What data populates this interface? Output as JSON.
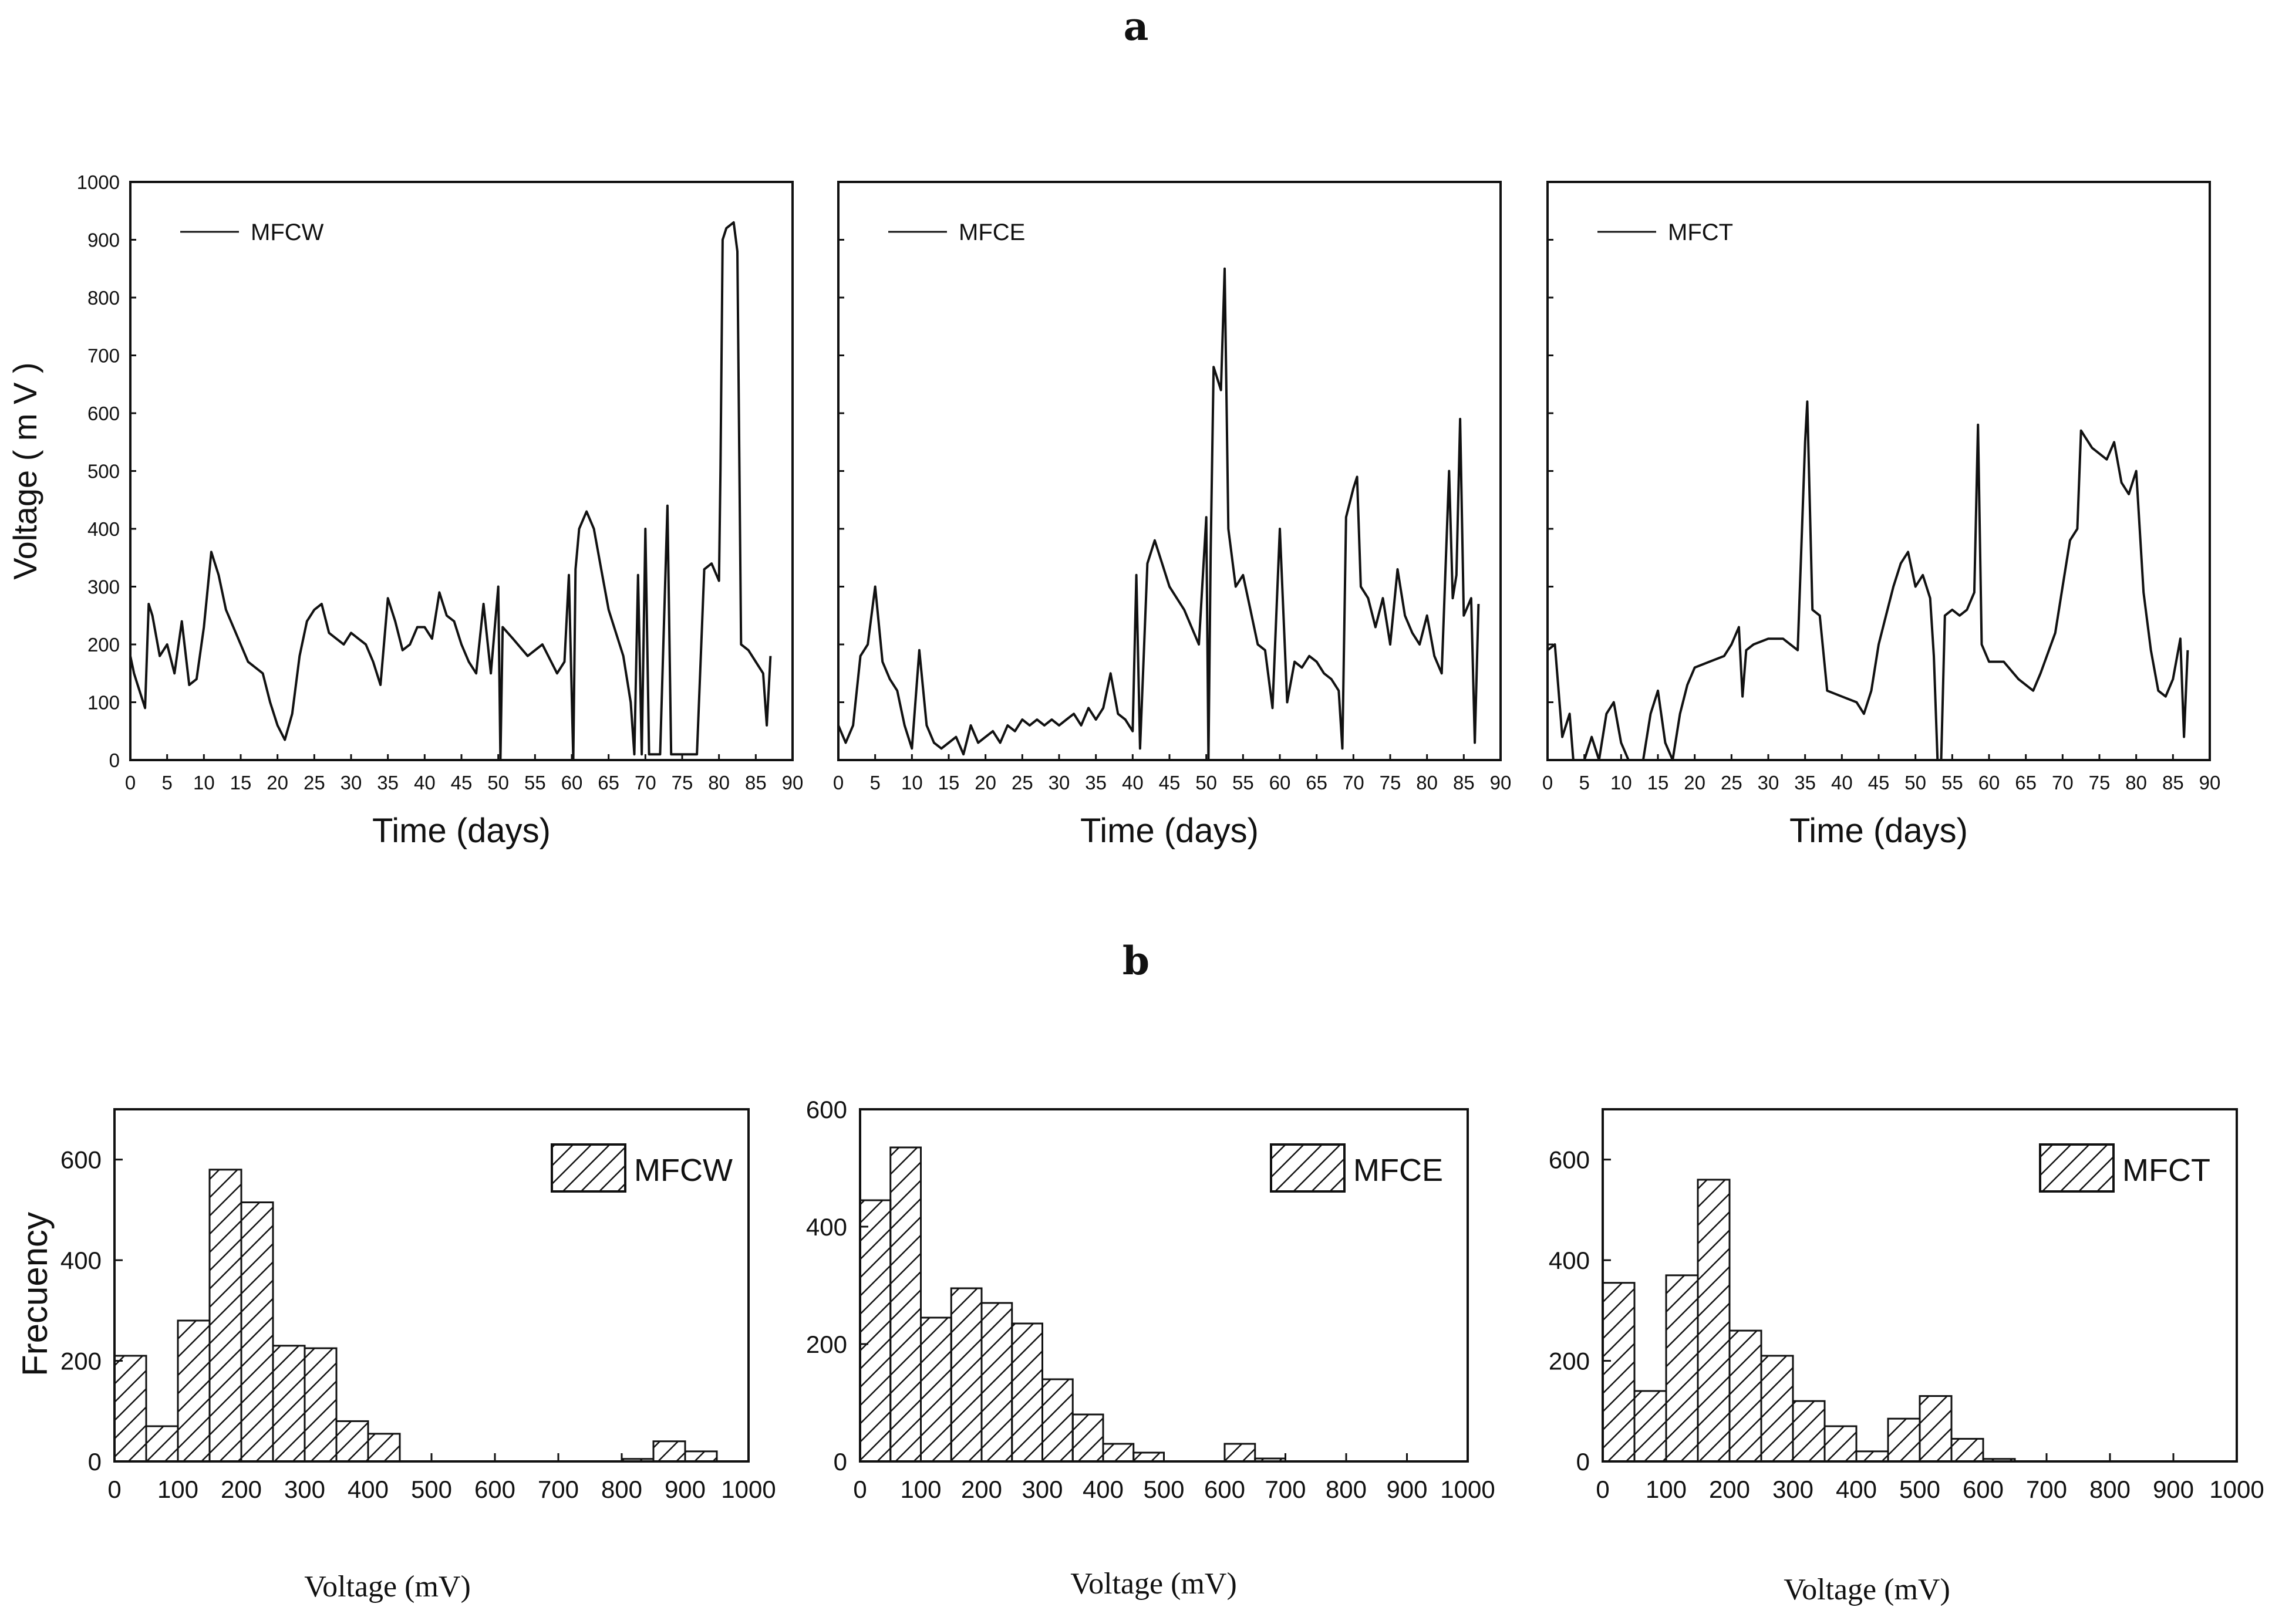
{
  "panel_a_label": "a",
  "panel_b_label": "b",
  "chart_data": [
    {
      "type": "line",
      "panel": "a",
      "series_name": "MFCW",
      "xlabel": "Time (days)",
      "ylabel": "Voltage ( m V )",
      "xlim": [
        0,
        90
      ],
      "ylim": [
        0,
        1000
      ],
      "xticks": [
        0,
        5,
        10,
        15,
        20,
        25,
        30,
        35,
        40,
        45,
        50,
        55,
        60,
        65,
        70,
        75,
        80,
        85,
        90
      ],
      "yticks": [
        0,
        100,
        200,
        300,
        400,
        500,
        600,
        700,
        800,
        900,
        1000
      ],
      "points": [
        [
          0,
          180
        ],
        [
          0.5,
          150
        ],
        [
          1,
          130
        ],
        [
          1.5,
          110
        ],
        [
          2,
          90
        ],
        [
          2.5,
          270
        ],
        [
          3,
          250
        ],
        [
          4,
          180
        ],
        [
          5,
          200
        ],
        [
          6,
          150
        ],
        [
          7,
          240
        ],
        [
          8,
          130
        ],
        [
          9,
          140
        ],
        [
          10,
          230
        ],
        [
          11,
          360
        ],
        [
          12,
          320
        ],
        [
          13,
          260
        ],
        [
          14,
          230
        ],
        [
          15,
          200
        ],
        [
          16,
          170
        ],
        [
          17,
          160
        ],
        [
          18,
          150
        ],
        [
          19,
          100
        ],
        [
          20,
          60
        ],
        [
          21,
          35
        ],
        [
          22,
          80
        ],
        [
          23,
          180
        ],
        [
          24,
          240
        ],
        [
          25,
          260
        ],
        [
          26,
          270
        ],
        [
          27,
          220
        ],
        [
          28,
          210
        ],
        [
          29,
          200
        ],
        [
          30,
          220
        ],
        [
          31,
          210
        ],
        [
          32,
          200
        ],
        [
          33,
          170
        ],
        [
          34,
          130
        ],
        [
          35,
          280
        ],
        [
          36,
          240
        ],
        [
          37,
          190
        ],
        [
          38,
          200
        ],
        [
          39,
          230
        ],
        [
          40,
          230
        ],
        [
          41,
          210
        ],
        [
          42,
          290
        ],
        [
          43,
          250
        ],
        [
          44,
          240
        ],
        [
          45,
          200
        ],
        [
          46,
          170
        ],
        [
          47,
          150
        ],
        [
          48,
          270
        ],
        [
          49,
          150
        ],
        [
          50,
          300
        ],
        [
          50.3,
          0
        ],
        [
          50.6,
          230
        ],
        [
          52,
          210
        ],
        [
          54,
          180
        ],
        [
          56,
          200
        ],
        [
          58,
          150
        ],
        [
          59,
          170
        ],
        [
          59.6,
          320
        ],
        [
          60.2,
          0
        ],
        [
          60.5,
          330
        ],
        [
          61,
          400
        ],
        [
          62,
          430
        ],
        [
          63,
          400
        ],
        [
          64,
          330
        ],
        [
          65,
          260
        ],
        [
          66,
          220
        ],
        [
          67,
          180
        ],
        [
          68,
          100
        ],
        [
          68.5,
          10
        ],
        [
          69,
          320
        ],
        [
          69.5,
          10
        ],
        [
          70,
          400
        ],
        [
          70.5,
          10
        ],
        [
          72,
          10
        ],
        [
          73,
          440
        ],
        [
          73.5,
          10
        ],
        [
          75,
          10
        ],
        [
          77,
          10
        ],
        [
          78,
          330
        ],
        [
          79,
          340
        ],
        [
          80,
          310
        ],
        [
          80.2,
          500
        ],
        [
          80.5,
          900
        ],
        [
          81,
          920
        ],
        [
          82,
          930
        ],
        [
          82.5,
          880
        ],
        [
          83,
          200
        ],
        [
          84,
          190
        ],
        [
          85,
          170
        ],
        [
          86,
          150
        ],
        [
          86.5,
          60
        ],
        [
          87,
          180
        ]
      ]
    },
    {
      "type": "line",
      "panel": "a",
      "series_name": "MFCE",
      "xlabel": "Time (days)",
      "xlim": [
        0,
        90
      ],
      "ylim": [
        0,
        1000
      ],
      "xticks": [
        0,
        5,
        10,
        15,
        20,
        25,
        30,
        35,
        40,
        45,
        50,
        55,
        60,
        65,
        70,
        75,
        80,
        85,
        90
      ],
      "points": [
        [
          0,
          60
        ],
        [
          1,
          30
        ],
        [
          2,
          60
        ],
        [
          3,
          180
        ],
        [
          4,
          200
        ],
        [
          5,
          300
        ],
        [
          6,
          170
        ],
        [
          7,
          140
        ],
        [
          8,
          120
        ],
        [
          9,
          60
        ],
        [
          10,
          20
        ],
        [
          11,
          190
        ],
        [
          12,
          60
        ],
        [
          13,
          30
        ],
        [
          14,
          20
        ],
        [
          15,
          30
        ],
        [
          16,
          40
        ],
        [
          17,
          10
        ],
        [
          18,
          60
        ],
        [
          19,
          30
        ],
        [
          20,
          40
        ],
        [
          21,
          50
        ],
        [
          22,
          30
        ],
        [
          23,
          60
        ],
        [
          24,
          50
        ],
        [
          25,
          70
        ],
        [
          26,
          60
        ],
        [
          27,
          70
        ],
        [
          28,
          60
        ],
        [
          29,
          70
        ],
        [
          30,
          60
        ],
        [
          31,
          70
        ],
        [
          32,
          80
        ],
        [
          33,
          60
        ],
        [
          34,
          90
        ],
        [
          35,
          70
        ],
        [
          36,
          90
        ],
        [
          37,
          150
        ],
        [
          38,
          80
        ],
        [
          39,
          70
        ],
        [
          40,
          50
        ],
        [
          40.5,
          320
        ],
        [
          41,
          20
        ],
        [
          42,
          340
        ],
        [
          43,
          380
        ],
        [
          44,
          340
        ],
        [
          45,
          300
        ],
        [
          46,
          280
        ],
        [
          47,
          260
        ],
        [
          48,
          230
        ],
        [
          49,
          200
        ],
        [
          50,
          420
        ],
        [
          50.3,
          0
        ],
        [
          50.6,
          360
        ],
        [
          51,
          680
        ],
        [
          52,
          640
        ],
        [
          52.5,
          850
        ],
        [
          53,
          400
        ],
        [
          54,
          300
        ],
        [
          55,
          320
        ],
        [
          56,
          260
        ],
        [
          57,
          200
        ],
        [
          58,
          190
        ],
        [
          59,
          90
        ],
        [
          60,
          400
        ],
        [
          61,
          100
        ],
        [
          62,
          170
        ],
        [
          63,
          160
        ],
        [
          64,
          180
        ],
        [
          65,
          170
        ],
        [
          66,
          150
        ],
        [
          67,
          140
        ],
        [
          68,
          120
        ],
        [
          68.5,
          20
        ],
        [
          69,
          420
        ],
        [
          70,
          470
        ],
        [
          70.5,
          490
        ],
        [
          71,
          300
        ],
        [
          72,
          280
        ],
        [
          73,
          230
        ],
        [
          74,
          280
        ],
        [
          75,
          200
        ],
        [
          76,
          330
        ],
        [
          77,
          250
        ],
        [
          78,
          220
        ],
        [
          79,
          200
        ],
        [
          80,
          250
        ],
        [
          81,
          180
        ],
        [
          82,
          150
        ],
        [
          83,
          500
        ],
        [
          83.5,
          280
        ],
        [
          84,
          320
        ],
        [
          84.5,
          590
        ],
        [
          85,
          250
        ],
        [
          86,
          280
        ],
        [
          86.5,
          30
        ],
        [
          87,
          270
        ]
      ]
    },
    {
      "type": "line",
      "panel": "a",
      "series_name": "MFCT",
      "xlabel": "Time (days)",
      "xlim": [
        0,
        90
      ],
      "ylim": [
        0,
        1000
      ],
      "xticks": [
        0,
        5,
        10,
        15,
        20,
        25,
        30,
        35,
        40,
        45,
        50,
        55,
        60,
        65,
        70,
        75,
        80,
        85,
        90
      ],
      "points": [
        [
          0,
          190
        ],
        [
          1,
          200
        ],
        [
          2,
          40
        ],
        [
          3,
          80
        ],
        [
          3.5,
          0
        ],
        [
          5,
          0
        ],
        [
          6,
          40
        ],
        [
          7,
          0
        ],
        [
          8,
          80
        ],
        [
          9,
          100
        ],
        [
          10,
          30
        ],
        [
          11,
          0
        ],
        [
          13,
          0
        ],
        [
          14,
          80
        ],
        [
          15,
          120
        ],
        [
          16,
          30
        ],
        [
          17,
          0
        ],
        [
          18,
          80
        ],
        [
          19,
          130
        ],
        [
          20,
          160
        ],
        [
          22,
          170
        ],
        [
          24,
          180
        ],
        [
          25,
          200
        ],
        [
          26,
          230
        ],
        [
          26.5,
          110
        ],
        [
          27,
          190
        ],
        [
          28,
          200
        ],
        [
          30,
          210
        ],
        [
          32,
          210
        ],
        [
          33,
          200
        ],
        [
          34,
          190
        ],
        [
          35,
          550
        ],
        [
          35.3,
          620
        ],
        [
          36,
          260
        ],
        [
          37,
          250
        ],
        [
          38,
          120
        ],
        [
          40,
          110
        ],
        [
          42,
          100
        ],
        [
          43,
          80
        ],
        [
          44,
          120
        ],
        [
          45,
          200
        ],
        [
          46,
          250
        ],
        [
          47,
          300
        ],
        [
          48,
          340
        ],
        [
          49,
          360
        ],
        [
          50,
          300
        ],
        [
          51,
          320
        ],
        [
          52,
          280
        ],
        [
          52.5,
          180
        ],
        [
          53,
          0
        ],
        [
          53.5,
          0
        ],
        [
          54,
          250
        ],
        [
          55,
          260
        ],
        [
          56,
          250
        ],
        [
          57,
          260
        ],
        [
          58,
          290
        ],
        [
          58.5,
          580
        ],
        [
          59,
          200
        ],
        [
          60,
          170
        ],
        [
          62,
          170
        ],
        [
          64,
          140
        ],
        [
          66,
          120
        ],
        [
          67,
          150
        ],
        [
          69,
          220
        ],
        [
          70,
          300
        ],
        [
          71,
          380
        ],
        [
          72,
          400
        ],
        [
          72.5,
          570
        ],
        [
          73,
          560
        ],
        [
          74,
          540
        ],
        [
          75,
          530
        ],
        [
          76,
          520
        ],
        [
          77,
          550
        ],
        [
          78,
          480
        ],
        [
          79,
          460
        ],
        [
          80,
          500
        ],
        [
          81,
          290
        ],
        [
          82,
          190
        ],
        [
          83,
          120
        ],
        [
          84,
          110
        ],
        [
          85,
          140
        ],
        [
          86,
          210
        ],
        [
          86.5,
          40
        ],
        [
          87,
          190
        ]
      ]
    },
    {
      "type": "bar",
      "panel": "b",
      "series_name": "MFCW",
      "xlabel": "Voltage (mV)",
      "ylabel": "Frecuency",
      "xlim": [
        0,
        1000
      ],
      "ylim": [
        0,
        700
      ],
      "xticks": [
        0,
        100,
        200,
        300,
        400,
        500,
        600,
        700,
        800,
        900,
        1000
      ],
      "yticks": [
        0,
        200,
        400,
        600
      ],
      "bin_width": 50,
      "bin_starts": [
        0,
        50,
        100,
        150,
        200,
        250,
        300,
        350,
        400,
        450,
        500,
        550,
        600,
        650,
        700,
        750,
        800,
        850,
        900
      ],
      "values": [
        210,
        70,
        280,
        580,
        515,
        230,
        225,
        80,
        55,
        0,
        0,
        0,
        0,
        0,
        0,
        0,
        5,
        40,
        20
      ]
    },
    {
      "type": "bar",
      "panel": "b",
      "series_name": "MFCE",
      "xlabel": "Voltage (mV)",
      "xlim": [
        0,
        1000
      ],
      "ylim": [
        0,
        600
      ],
      "xticks": [
        0,
        100,
        200,
        300,
        400,
        500,
        600,
        700,
        800,
        900,
        1000
      ],
      "yticks": [
        0,
        200,
        400,
        600
      ],
      "bin_width": 50,
      "bin_starts": [
        0,
        50,
        100,
        150,
        200,
        250,
        300,
        350,
        400,
        450,
        500,
        550,
        600,
        650
      ],
      "values": [
        445,
        535,
        245,
        295,
        270,
        235,
        140,
        80,
        30,
        15,
        0,
        0,
        30,
        5
      ]
    },
    {
      "type": "bar",
      "panel": "b",
      "series_name": "MFCT",
      "xlabel": "Voltage (mV)",
      "xlim": [
        0,
        1000
      ],
      "ylim": [
        0,
        700
      ],
      "xticks": [
        0,
        100,
        200,
        300,
        400,
        500,
        600,
        700,
        800,
        900,
        1000
      ],
      "yticks": [
        0,
        200,
        400,
        600
      ],
      "bin_width": 50,
      "bin_starts": [
        0,
        50,
        100,
        150,
        200,
        250,
        300,
        350,
        400,
        450,
        500,
        550,
        600
      ],
      "values": [
        355,
        140,
        370,
        560,
        260,
        210,
        120,
        70,
        20,
        85,
        130,
        45,
        5
      ]
    }
  ]
}
